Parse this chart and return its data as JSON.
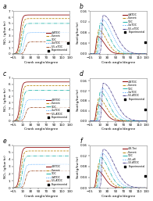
{
  "panels": [
    {
      "label": "a",
      "ylabel": "NOₓ (g/kw·hr)",
      "ylim": [
        0,
        7
      ],
      "yticks": [
        0,
        1,
        2,
        3,
        4,
        5,
        6,
        7
      ],
      "type": "left"
    },
    {
      "label": "b",
      "ylabel": "Soot(g/kw·hr)",
      "ylim": [
        0,
        0.16
      ],
      "yticks": [
        0.0,
        0.04,
        0.08,
        0.12,
        0.16
      ],
      "type": "right"
    },
    {
      "label": "c",
      "ylabel": "NOₓ (g/kw·hr)",
      "ylim": [
        0,
        7
      ],
      "yticks": [
        0,
        1,
        2,
        3,
        4,
        5,
        6,
        7
      ],
      "type": "left"
    },
    {
      "label": "d",
      "ylabel": "Soot(g/kw·hr)",
      "ylim": [
        0,
        0.17
      ],
      "yticks": [
        0.0,
        0.04,
        0.08,
        0.12,
        0.16
      ],
      "type": "right"
    },
    {
      "label": "e",
      "ylabel": "NOₓ (g/kw·hr)",
      "ylim": [
        0,
        6
      ],
      "yticks": [
        0,
        1,
        2,
        3,
        4,
        5,
        6
      ],
      "type": "left"
    },
    {
      "label": "f",
      "ylabel": "Soot(g/kw·hr)",
      "ylim": [
        0,
        0.16
      ],
      "yticks": [
        0.0,
        0.04,
        0.08,
        0.12,
        0.16
      ],
      "type": "right"
    }
  ],
  "xlim": [
    -15,
    130
  ],
  "xticks": [
    -15,
    10,
    30,
    50,
    70,
    90,
    110,
    130
  ],
  "xlabel": "Crank angle/degree",
  "colors_a": [
    "#8B0000",
    "#B8860B",
    "#20B2AA",
    "#1E90FF",
    "#A0522D"
  ],
  "colors_b": [
    "#8B0000",
    "#B8860B",
    "#20B2AA",
    "#1E90FF",
    "#483D8B"
  ],
  "colors_c": [
    "#8B0000",
    "#B8860B",
    "#20B2AA",
    "#1E90FF",
    "#A0522D"
  ],
  "colors_d": [
    "#8B0000",
    "#B8860B",
    "#20B2AA",
    "#1E90FF",
    "#483D8B"
  ],
  "colors_e": [
    "#8B0000",
    "#B8860B",
    "#20B2AA",
    "#1E90FF",
    "#A0522D"
  ],
  "colors_f": [
    "#8B0000",
    "#B8860B",
    "#20B2AA",
    "#1E90FF",
    "#483D8B"
  ],
  "legend_a": [
    "4-ATDC",
    "Current",
    "TDC",
    "3-aTDC",
    "5.5-aTDC",
    "Experimental"
  ],
  "legend_b": [
    "4-ATDC",
    "Current",
    "TDC",
    "3-aTDC",
    "5.5-aTDC",
    "Experimental"
  ],
  "legend_c": [
    "4-BTDC",
    "Current",
    "TDC",
    "3-aTDC",
    "5.5-ATDC",
    "Experimental"
  ],
  "legend_d": [
    "4-BTDC",
    "Current",
    "TDC",
    "3-aTDC",
    "5.5-ATDC",
    "Experimental"
  ],
  "legend_e": [
    "4-BTDC",
    "Current",
    "TDC",
    "3-ATDC",
    "5.5-ATDC",
    "Experimental"
  ],
  "legend_f": [
    "4.8-Tini",
    "Current",
    "TDC",
    "5.5-aB",
    "3.3-ATDC",
    "Experimental"
  ],
  "background_color": "#ffffff"
}
